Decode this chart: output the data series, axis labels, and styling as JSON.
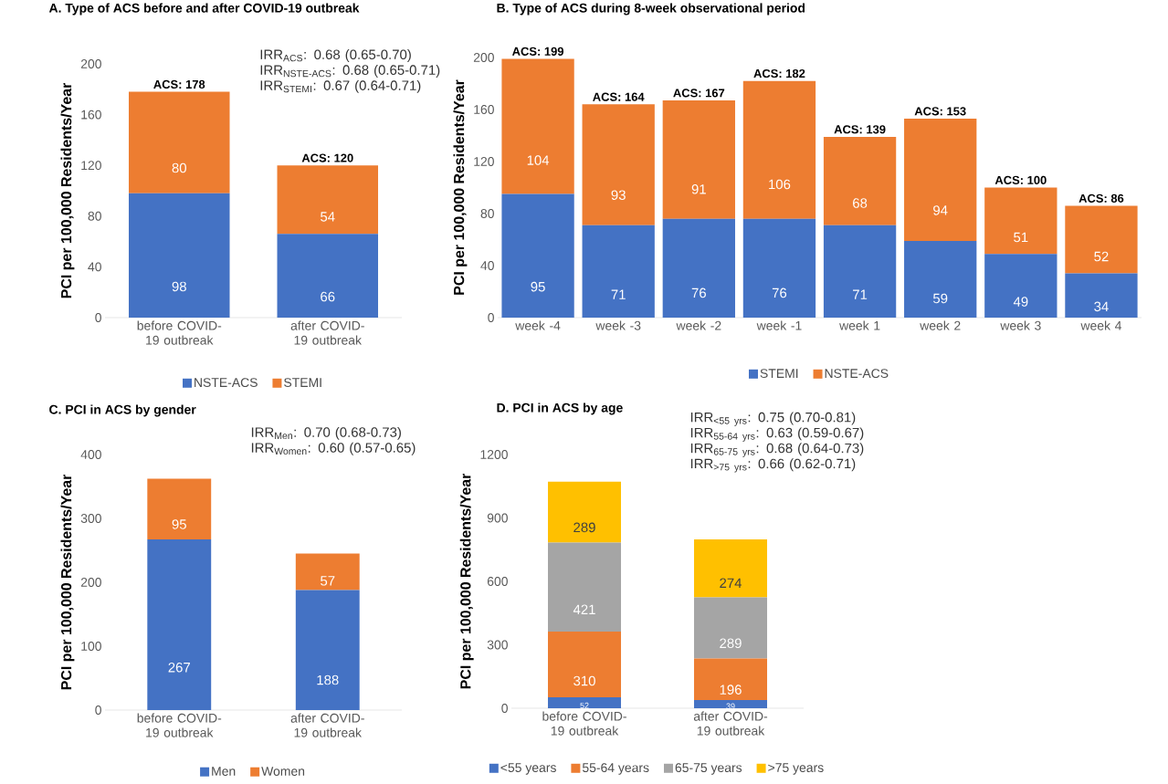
{
  "chart_data": [
    {
      "type": "bar",
      "stacked": true,
      "title": "A. Type of ACS before and after COVID-19 outbreak",
      "ylabel": "PCI per 100,000 Residents/Year",
      "categories": [
        "before COVID-19 outbreak",
        "after COVID-19 outbreak"
      ],
      "series": [
        {
          "name": "NSTE-ACS",
          "color": "#4472c4",
          "values": [
            98,
            66
          ]
        },
        {
          "name": "STEMI",
          "color": "#ed7d31",
          "values": [
            80,
            54
          ]
        }
      ],
      "totals": [
        "ACS: 178",
        "ACS: 120"
      ],
      "ylim": [
        0,
        200
      ],
      "yticks": [
        0,
        40,
        80,
        120,
        160,
        200
      ],
      "data_labels": true,
      "legend": "bottom",
      "annotations": [
        "IRR$_{ACS}$: 0.68 (0.65-0.70)",
        "IRR$_{NSTE-ACS}$: 0.68 (0.65-0.71)",
        "IRR$_{STEMI}$: 0.67 (0.64-0.71)"
      ]
    },
    {
      "type": "bar",
      "stacked": true,
      "title": "B. Type of ACS during 8-week observational period",
      "ylabel": "PCI per 100,000 Residents/Year",
      "categories": [
        "week -4",
        "week -3",
        "week -2",
        "week -1",
        "week 1",
        "week 2",
        "week 3",
        "week 4"
      ],
      "series": [
        {
          "name": "STEMI",
          "color": "#4472c4",
          "values": [
            95,
            71,
            76,
            76,
            71,
            59,
            49,
            34
          ]
        },
        {
          "name": "NSTE-ACS",
          "color": "#ed7d31",
          "values": [
            104,
            93,
            91,
            106,
            68,
            94,
            51,
            52
          ]
        }
      ],
      "totals": [
        "ACS: 199",
        "ACS: 164",
        "ACS: 167",
        "ACS: 182",
        "ACS: 139",
        "ACS: 153",
        "ACS: 100",
        "ACS: 86"
      ],
      "ylim": [
        0,
        200
      ],
      "yticks": [
        0,
        40,
        80,
        120,
        160,
        200
      ],
      "data_labels": true,
      "legend": "bottom"
    },
    {
      "type": "bar",
      "stacked": true,
      "title": "C. PCI in ACS by gender",
      "ylabel": "PCI per 100,000 Residents/Year",
      "categories": [
        "before COVID-19 outbreak",
        "after COVID-19 outbreak"
      ],
      "series": [
        {
          "name": "Men",
          "color": "#4472c4",
          "values": [
            267,
            188
          ]
        },
        {
          "name": "Women",
          "color": "#ed7d31",
          "values": [
            95,
            57
          ]
        }
      ],
      "ylim": [
        0,
        400
      ],
      "yticks": [
        0,
        100,
        200,
        300,
        400
      ],
      "data_labels": true,
      "legend": "bottom",
      "annotations": [
        "IRR$_{Men}$: 0.70 (0.68-0.73)",
        "IRR$_{Women}$: 0.60 (0.57-0.65)"
      ]
    },
    {
      "type": "bar",
      "stacked": true,
      "title": "D. PCI in ACS by age",
      "ylabel": "PCI per 100,000 Residents/Year",
      "categories": [
        "before COVID-19 outbreak",
        "after COVID-19 outbreak"
      ],
      "series": [
        {
          "name": "<55 years",
          "color": "#4472c4",
          "values": [
            52,
            39
          ]
        },
        {
          "name": "55-64 years",
          "color": "#ed7d31",
          "values": [
            310,
            196
          ]
        },
        {
          "name": "65-75 years",
          "color": "#a5a5a5",
          "values": [
            421,
            289
          ]
        },
        {
          "name": ">75 years",
          "color": "#ffc000",
          "values": [
            289,
            274
          ]
        }
      ],
      "ylim": [
        0,
        1200
      ],
      "yticks": [
        0,
        300,
        600,
        900,
        1200
      ],
      "data_labels": true,
      "legend": "bottom",
      "annotations": [
        "IRR$_{<55 yrs}$: 0.75 (0.70-0.81)",
        "IRR$_{55-64 yrs}$: 0.63 (0.59-0.67)",
        "IRR$_{65-75 yrs}$: 0.68 (0.64-0.73)",
        "IRR$_{>75 yrs}$: 0.66 (0.62-0.71)"
      ]
    }
  ]
}
